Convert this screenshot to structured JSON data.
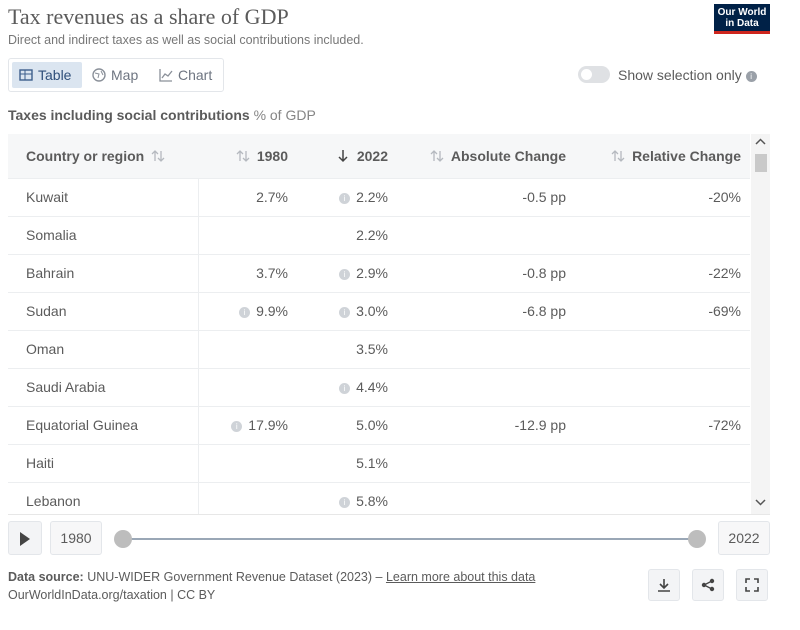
{
  "header": {
    "title": "Tax revenues as a share of GDP",
    "subtitle": "Direct and indirect taxes as well as social contributions included.",
    "logo": [
      "Our World",
      "in Data"
    ]
  },
  "tabs": [
    "Table",
    "Map",
    "Chart"
  ],
  "toggle": "Show selection only",
  "table": {
    "caption": "Taxes including social contributions",
    "unit": "% of GDP",
    "columns": [
      "Country or region",
      "1980",
      "2022",
      "Absolute Change",
      "Relative Change"
    ],
    "rows": [
      [
        "Kuwait",
        "2.7%",
        "2.2%",
        "-0.5 pp",
        "-20%"
      ],
      [
        "Somalia",
        null,
        "2.2%",
        null,
        null
      ],
      [
        "Bahrain",
        "3.7%",
        "2.9%",
        "-0.8 pp",
        "-22%"
      ],
      [
        "Sudan",
        "9.9%",
        "3.0%",
        "-6.8 pp",
        "-69%"
      ],
      [
        "Oman",
        null,
        "3.5%",
        null,
        null
      ],
      [
        "Saudi Arabia",
        null,
        "4.4%",
        null,
        null
      ],
      [
        "Equatorial Guinea",
        "17.9%",
        "5.0%",
        "-12.9 pp",
        "-72%"
      ],
      [
        "Haiti",
        null,
        "5.1%",
        null,
        null
      ],
      [
        "Lebanon",
        null,
        "5.8%",
        null,
        null
      ]
    ]
  },
  "timeline": {
    "start": "1980",
    "end": "2022"
  },
  "footer": {
    "source_label": "Data source:",
    "source": "UNU-WIDER Government Revenue Dataset (2023) –",
    "link": "Learn more about this data",
    "url": "OurWorldInData.org/taxation | CC BY"
  }
}
